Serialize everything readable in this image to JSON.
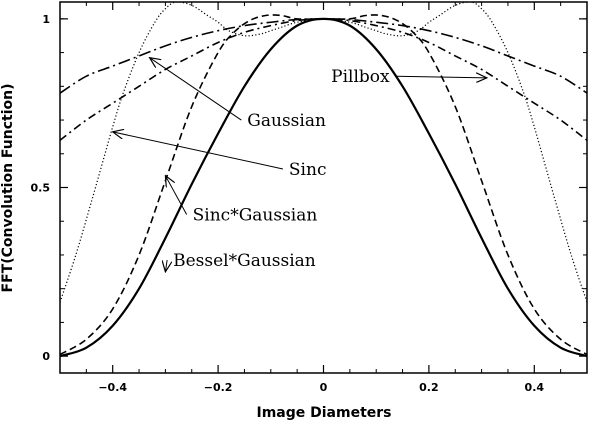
{
  "chart_data": {
    "type": "line",
    "xlabel": "Image Diameters",
    "ylabel": "FFT(Convolution Function)",
    "xlim": [
      -0.5,
      0.5
    ],
    "ylim": [
      -0.05,
      1.05
    ],
    "xticks": [
      -0.4,
      -0.2,
      0,
      0.2,
      0.4
    ],
    "xtick_labels": [
      "−0.4",
      "−0.2",
      "0",
      "0.2",
      "0.4"
    ],
    "yticks": [
      0,
      0.5,
      1
    ],
    "ytick_labels": [
      "0",
      "0.5",
      "1"
    ],
    "grid": false,
    "legend": "none",
    "series": [
      {
        "name": "Pillbox",
        "style": "dashdot-long",
        "x": [
          -0.5,
          -0.45,
          -0.4,
          -0.35,
          -0.3,
          -0.25,
          -0.2,
          -0.15,
          -0.1,
          -0.05,
          0,
          0.05,
          0.1,
          0.15,
          0.2,
          0.25,
          0.3,
          0.35,
          0.4,
          0.45,
          0.5
        ],
        "y": [
          0.78,
          0.83,
          0.86,
          0.89,
          0.92,
          0.945,
          0.965,
          0.98,
          0.99,
          0.998,
          1.0,
          0.998,
          0.99,
          0.98,
          0.965,
          0.945,
          0.92,
          0.89,
          0.86,
          0.83,
          0.78
        ]
      },
      {
        "name": "Gaussian",
        "style": "dashdot",
        "x": [
          -0.5,
          -0.45,
          -0.4,
          -0.35,
          -0.3,
          -0.25,
          -0.2,
          -0.15,
          -0.1,
          -0.05,
          0,
          0.05,
          0.1,
          0.15,
          0.2,
          0.25,
          0.3,
          0.35,
          0.4,
          0.45,
          0.5
        ],
        "y": [
          0.64,
          0.7,
          0.75,
          0.8,
          0.85,
          0.89,
          0.93,
          0.96,
          0.98,
          0.995,
          1.0,
          0.995,
          0.98,
          0.96,
          0.93,
          0.89,
          0.85,
          0.8,
          0.75,
          0.7,
          0.64
        ]
      },
      {
        "name": "Sinc",
        "style": "dotted",
        "x": [
          -0.5,
          -0.47,
          -0.44,
          -0.42,
          -0.4,
          -0.38,
          -0.35,
          -0.32,
          -0.3,
          -0.28,
          -0.25,
          -0.22,
          -0.2,
          -0.18,
          -0.15,
          -0.12,
          -0.1,
          -0.08,
          -0.05,
          0,
          0.05,
          0.08,
          0.1,
          0.12,
          0.15,
          0.18,
          0.2,
          0.22,
          0.25,
          0.28,
          0.3,
          0.32,
          0.35,
          0.38,
          0.4,
          0.42,
          0.44,
          0.47,
          0.5
        ],
        "y": [
          0.16,
          0.3,
          0.46,
          0.57,
          0.68,
          0.78,
          0.9,
          0.99,
          1.03,
          1.05,
          1.04,
          1.01,
          0.99,
          0.965,
          0.95,
          0.955,
          0.965,
          0.975,
          0.99,
          1.0,
          0.99,
          0.975,
          0.965,
          0.955,
          0.95,
          0.965,
          0.99,
          1.01,
          1.04,
          1.05,
          1.03,
          0.99,
          0.9,
          0.78,
          0.68,
          0.57,
          0.46,
          0.3,
          0.16
        ]
      },
      {
        "name": "Sinc*Gaussian",
        "style": "dashed",
        "x": [
          -0.5,
          -0.45,
          -0.4,
          -0.35,
          -0.3,
          -0.25,
          -0.2,
          -0.17,
          -0.14,
          -0.11,
          -0.08,
          -0.05,
          0,
          0.05,
          0.08,
          0.11,
          0.14,
          0.17,
          0.2,
          0.25,
          0.3,
          0.35,
          0.4,
          0.45,
          0.5
        ],
        "y": [
          0.005,
          0.05,
          0.14,
          0.3,
          0.52,
          0.74,
          0.9,
          0.96,
          0.995,
          1.01,
          1.01,
          1.0,
          1.0,
          1.0,
          1.01,
          1.01,
          0.995,
          0.96,
          0.9,
          0.74,
          0.52,
          0.3,
          0.14,
          0.05,
          0.005
        ]
      },
      {
        "name": "Bessel*Gaussian",
        "style": "solid",
        "x": [
          -0.5,
          -0.45,
          -0.4,
          -0.35,
          -0.3,
          -0.25,
          -0.2,
          -0.15,
          -0.1,
          -0.05,
          0,
          0.05,
          0.1,
          0.15,
          0.2,
          0.25,
          0.3,
          0.35,
          0.4,
          0.45,
          0.5
        ],
        "y": [
          0.0,
          0.025,
          0.09,
          0.2,
          0.35,
          0.51,
          0.66,
          0.8,
          0.91,
          0.98,
          1.0,
          0.98,
          0.91,
          0.8,
          0.66,
          0.51,
          0.35,
          0.2,
          0.09,
          0.025,
          0.0
        ]
      }
    ],
    "annotations": [
      {
        "text": "Pillbox",
        "x": 0.07,
        "y": 0.83,
        "arrow_to": [
          0.31,
          0.825
        ]
      },
      {
        "text": "Gaussian",
        "x": -0.07,
        "y": 0.7,
        "arrow_to": [
          -0.33,
          0.885
        ]
      },
      {
        "text": "Sinc",
        "x": -0.03,
        "y": 0.555,
        "arrow_to": [
          -0.4,
          0.665
        ]
      },
      {
        "text": "Sinc*Gaussian",
        "x": -0.13,
        "y": 0.42,
        "arrow_to": [
          -0.3,
          0.535
        ]
      },
      {
        "text": "Bessel*Gaussian",
        "x": -0.15,
        "y": 0.285,
        "arrow_to": [
          -0.3,
          0.25
        ]
      }
    ]
  }
}
